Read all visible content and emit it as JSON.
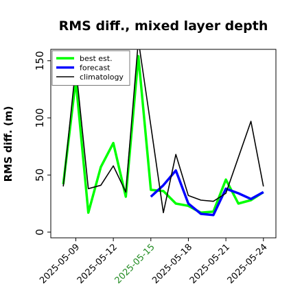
{
  "chart_data": {
    "type": "line",
    "title": "RMS diff., mixed layer depth",
    "xlabel": "",
    "ylabel": "RMS diff. (m)",
    "ylim": [
      -5,
      160
    ],
    "xlim": [
      "2025-05-07",
      "2025-05-25"
    ],
    "yticks": [
      0,
      50,
      100,
      150
    ],
    "xticks": [
      "2025-05-09",
      "2025-05-12",
      "2025-05-15",
      "2025-05-18",
      "2025-05-21",
      "2025-05-24"
    ],
    "highlighted_xtick": "2025-05-15",
    "highlight_color": "#228b22",
    "grid": false,
    "legend_position": "upper-left",
    "series": [
      {
        "name": "best est.",
        "color": "#00ff00",
        "x": [
          "2025-05-08",
          "2025-05-09",
          "2025-05-10",
          "2025-05-11",
          "2025-05-12",
          "2025-05-13",
          "2025-05-14",
          "2025-05-15",
          "2025-05-16",
          "2025-05-17",
          "2025-05-18",
          "2025-05-19",
          "2025-05-20",
          "2025-05-21",
          "2025-05-22",
          "2025-05-23",
          "2025-05-24"
        ],
        "y": [
          42,
          133,
          17,
          57,
          78,
          31,
          154,
          37,
          36,
          25,
          23,
          17,
          18,
          46,
          25,
          28,
          35
        ]
      },
      {
        "name": "forecast",
        "color": "#0000ff",
        "x": [
          "2025-05-15",
          "2025-05-16",
          "2025-05-17",
          "2025-05-18",
          "2025-05-19",
          "2025-05-20",
          "2025-05-21",
          "2025-05-22",
          "2025-05-23",
          "2025-05-24"
        ],
        "y": [
          31,
          41,
          54,
          25,
          16,
          15,
          38,
          34,
          29,
          35
        ]
      },
      {
        "name": "climatology",
        "color": "#000000",
        "x": [
          "2025-05-08",
          "2025-05-09",
          "2025-05-10",
          "2025-05-11",
          "2025-05-12",
          "2025-05-13",
          "2025-05-14",
          "2025-05-15",
          "2025-05-16",
          "2025-05-17",
          "2025-05-18",
          "2025-05-19",
          "2025-05-20",
          "2025-05-21",
          "2025-05-23",
          "2025-05-24"
        ],
        "y": [
          40,
          145,
          38,
          41,
          58,
          35,
          168,
          93,
          17,
          68,
          32,
          28,
          27,
          34,
          97,
          40
        ]
      }
    ]
  }
}
